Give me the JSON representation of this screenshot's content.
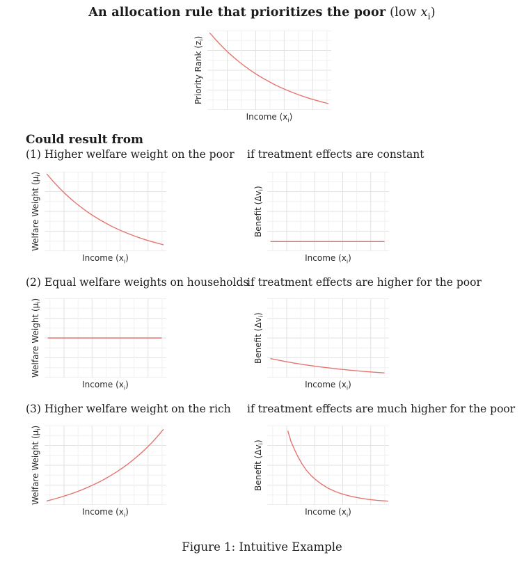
{
  "title": {
    "bold": "An allocation rule that prioritizes the poor",
    "pre": " (low ",
    "var": "x",
    "sub": "i",
    "post": ")"
  },
  "heading": "Could result from",
  "figure_caption": "Figure 1: Intuitive Example",
  "rows": [
    {
      "left_label": "(1) Higher welfare weight on the poor",
      "right_label": "if treatment effects are constant"
    },
    {
      "left_label": "(2) Equal welfare weights on households",
      "right_label": "if treatment effects are higher for the poor"
    },
    {
      "left_label": "(3) Higher welfare weight on the rich",
      "right_label": "if treatment effects are much higher for the poor"
    }
  ],
  "colors": {
    "curve": "#e4756f",
    "grid_major": "#e2e2e2",
    "grid_minor": "#f0f0f0",
    "text": "#1b1b1b",
    "axis_label": "#2a2a2a",
    "background": "#ffffff"
  },
  "chart_data": [
    {
      "id": "priority-rank",
      "type": "line",
      "title": "",
      "xlabel": {
        "pre": "Income (x",
        "sub": "i",
        "post": ")"
      },
      "ylabel": {
        "pre": "Priority Rank (z",
        "sub": "i",
        "post": ")"
      },
      "ticks": "none",
      "grid": true,
      "legend": "none",
      "x_range": [
        0,
        1
      ],
      "y_range": [
        0,
        1
      ],
      "shape": "convex decreasing curve (high priority at low income)",
      "points": [
        [
          0.02,
          0.97
        ],
        [
          0.068,
          0.884
        ],
        [
          0.116,
          0.805
        ],
        [
          0.163,
          0.732
        ],
        [
          0.211,
          0.665
        ],
        [
          0.259,
          0.602
        ],
        [
          0.307,
          0.545
        ],
        [
          0.354,
          0.492
        ],
        [
          0.402,
          0.443
        ],
        [
          0.45,
          0.398
        ],
        [
          0.498,
          0.356
        ],
        [
          0.545,
          0.317
        ],
        [
          0.593,
          0.282
        ],
        [
          0.641,
          0.249
        ],
        [
          0.689,
          0.219
        ],
        [
          0.736,
          0.191
        ],
        [
          0.784,
          0.165
        ],
        [
          0.832,
          0.141
        ],
        [
          0.88,
          0.119
        ],
        [
          0.927,
          0.099
        ],
        [
          0.975,
          0.08
        ]
      ]
    },
    {
      "id": "welfare-weight-1",
      "type": "line",
      "title": "",
      "xlabel": {
        "pre": "Income (x",
        "sub": "i",
        "post": ")"
      },
      "ylabel": {
        "pre": "Welfare Weight (μ",
        "sub": "i",
        "post": ")"
      },
      "ticks": "none",
      "grid": true,
      "legend": "none",
      "x_range": [
        0,
        1
      ],
      "y_range": [
        0,
        1
      ],
      "shape": "convex decreasing curve (higher welfare weight on the poor)",
      "points": [
        [
          0.02,
          0.97
        ],
        [
          0.068,
          0.884
        ],
        [
          0.116,
          0.805
        ],
        [
          0.163,
          0.732
        ],
        [
          0.211,
          0.665
        ],
        [
          0.259,
          0.602
        ],
        [
          0.307,
          0.545
        ],
        [
          0.354,
          0.492
        ],
        [
          0.402,
          0.443
        ],
        [
          0.45,
          0.398
        ],
        [
          0.498,
          0.356
        ],
        [
          0.545,
          0.317
        ],
        [
          0.593,
          0.282
        ],
        [
          0.641,
          0.249
        ],
        [
          0.689,
          0.219
        ],
        [
          0.736,
          0.191
        ],
        [
          0.784,
          0.165
        ],
        [
          0.832,
          0.141
        ],
        [
          0.88,
          0.119
        ],
        [
          0.927,
          0.099
        ],
        [
          0.975,
          0.08
        ]
      ]
    },
    {
      "id": "benefit-1",
      "type": "line",
      "title": "",
      "xlabel": {
        "pre": "Income (x",
        "sub": "i",
        "post": ")"
      },
      "ylabel": {
        "pre": "Benefit (Δv",
        "sub": "i",
        "post": ")"
      },
      "ticks": "none",
      "grid": true,
      "legend": "none",
      "x_range": [
        0,
        1
      ],
      "y_range": [
        0,
        1
      ],
      "shape": "flat horizontal line near bottom (constant treatment effects)",
      "points": [
        [
          0.03,
          0.12
        ],
        [
          0.96,
          0.12
        ]
      ]
    },
    {
      "id": "welfare-weight-2",
      "type": "line",
      "title": "",
      "xlabel": {
        "pre": "Income (x",
        "sub": "i",
        "post": ")"
      },
      "ylabel": {
        "pre": "Welfare Weight (μ",
        "sub": "i",
        "post": ")"
      },
      "ticks": "none",
      "grid": true,
      "legend": "none",
      "x_range": [
        0,
        1
      ],
      "y_range": [
        0,
        1
      ],
      "shape": "flat horizontal line at mid height (equal welfare weights)",
      "points": [
        [
          0.03,
          0.5
        ],
        [
          0.96,
          0.5
        ]
      ]
    },
    {
      "id": "benefit-2",
      "type": "line",
      "title": "",
      "xlabel": {
        "pre": "Income (x",
        "sub": "i",
        "post": ")"
      },
      "ylabel": {
        "pre": "Benefit (Δv",
        "sub": "i",
        "post": ")"
      },
      "ticks": "none",
      "grid": true,
      "legend": "none",
      "x_range": [
        0,
        1
      ],
      "y_range": [
        0,
        1
      ],
      "shape": "gently decreasing curve near bottom (treatment effects higher for the poor)",
      "points": [
        [
          0.03,
          0.24
        ],
        [
          0.123,
          0.211
        ],
        [
          0.216,
          0.185
        ],
        [
          0.309,
          0.162
        ],
        [
          0.402,
          0.142
        ],
        [
          0.495,
          0.124
        ],
        [
          0.588,
          0.108
        ],
        [
          0.681,
          0.094
        ],
        [
          0.774,
          0.081
        ],
        [
          0.867,
          0.07
        ],
        [
          0.96,
          0.06
        ]
      ]
    },
    {
      "id": "welfare-weight-3",
      "type": "line",
      "title": "",
      "xlabel": {
        "pre": "Income (x",
        "sub": "i",
        "post": ")"
      },
      "ylabel": {
        "pre": "Welfare Weight (μ",
        "sub": "i",
        "post": ")"
      },
      "ticks": "none",
      "grid": true,
      "legend": "none",
      "x_range": [
        0,
        1
      ],
      "y_range": [
        0,
        1
      ],
      "shape": "convex increasing curve (higher welfare weight on the rich)",
      "points": [
        [
          0.02,
          0.05
        ],
        [
          0.068,
          0.069
        ],
        [
          0.116,
          0.09
        ],
        [
          0.163,
          0.112
        ],
        [
          0.211,
          0.136
        ],
        [
          0.259,
          0.162
        ],
        [
          0.307,
          0.19
        ],
        [
          0.354,
          0.221
        ],
        [
          0.402,
          0.254
        ],
        [
          0.45,
          0.29
        ],
        [
          0.498,
          0.329
        ],
        [
          0.545,
          0.371
        ],
        [
          0.593,
          0.417
        ],
        [
          0.641,
          0.467
        ],
        [
          0.689,
          0.52
        ],
        [
          0.736,
          0.578
        ],
        [
          0.784,
          0.641
        ],
        [
          0.832,
          0.709
        ],
        [
          0.88,
          0.783
        ],
        [
          0.927,
          0.863
        ],
        [
          0.975,
          0.95
        ]
      ]
    },
    {
      "id": "benefit-3",
      "type": "line",
      "title": "",
      "xlabel": {
        "pre": "Income (x",
        "sub": "i",
        "post": ")"
      },
      "ylabel": {
        "pre": "Benefit (Δv",
        "sub": "i",
        "post": ")"
      },
      "ticks": "none",
      "grid": true,
      "legend": "none",
      "x_range": [
        0,
        1
      ],
      "y_range": [
        0,
        1
      ],
      "shape": "steep hyperbolic decreasing curve (treatment effects much higher for the poor)",
      "points": [
        [
          0.17,
          0.93
        ],
        [
          0.195,
          0.8
        ],
        [
          0.225,
          0.695
        ],
        [
          0.255,
          0.6
        ],
        [
          0.285,
          0.52
        ],
        [
          0.32,
          0.44
        ],
        [
          0.36,
          0.37
        ],
        [
          0.4,
          0.315
        ],
        [
          0.445,
          0.263
        ],
        [
          0.5,
          0.21
        ],
        [
          0.56,
          0.168
        ],
        [
          0.62,
          0.135
        ],
        [
          0.69,
          0.107
        ],
        [
          0.76,
          0.086
        ],
        [
          0.83,
          0.07
        ],
        [
          0.9,
          0.058
        ],
        [
          0.96,
          0.051
        ],
        [
          0.99,
          0.048
        ]
      ]
    }
  ]
}
